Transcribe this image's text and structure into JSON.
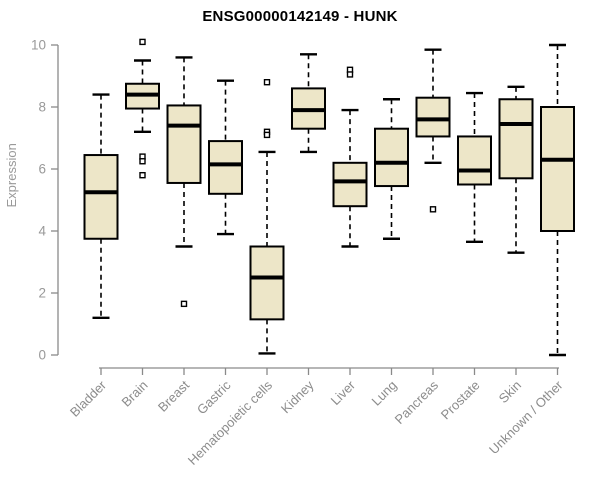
{
  "title": "ENSG00000142149 - HUNK",
  "chart_data": {
    "type": "boxplot",
    "title": "ENSG00000142149 - HUNK",
    "xlabel": "",
    "ylabel": "Expression",
    "ylim": [
      0,
      10
    ],
    "yticks": [
      0,
      2,
      4,
      6,
      8,
      10
    ],
    "grid": false,
    "legend": false,
    "marker": "open-square",
    "categories": [
      "Bladder",
      "Brain",
      "Breast",
      "Gastric",
      "Hematopoietic cells",
      "Kidney",
      "Liver",
      "Lung",
      "Pancreas",
      "Prostate",
      "Skin",
      "Unknown / Other"
    ],
    "series": [
      {
        "name": "Bladder",
        "low": 1.2,
        "q1": 3.75,
        "median": 5.25,
        "q3": 6.45,
        "high": 8.4,
        "outliers": []
      },
      {
        "name": "Brain",
        "low": 7.2,
        "q1": 7.95,
        "median": 8.4,
        "q3": 8.75,
        "high": 9.5,
        "outliers": [
          10.1,
          6.4,
          6.25,
          5.8
        ]
      },
      {
        "name": "Breast",
        "low": 3.5,
        "q1": 5.55,
        "median": 7.4,
        "q3": 8.05,
        "high": 9.6,
        "outliers": [
          1.65
        ]
      },
      {
        "name": "Gastric",
        "low": 3.9,
        "q1": 5.2,
        "median": 6.15,
        "q3": 6.9,
        "high": 8.85,
        "outliers": []
      },
      {
        "name": "Hematopoietic cells",
        "low": 0.05,
        "q1": 1.15,
        "median": 2.5,
        "q3": 3.5,
        "high": 6.55,
        "outliers": [
          8.8,
          7.2,
          7.1
        ]
      },
      {
        "name": "Kidney",
        "low": 6.55,
        "q1": 7.3,
        "median": 7.9,
        "q3": 8.6,
        "high": 9.7,
        "outliers": []
      },
      {
        "name": "Liver",
        "low": 3.5,
        "q1": 4.8,
        "median": 5.6,
        "q3": 6.2,
        "high": 7.9,
        "outliers": [
          9.2,
          9.05
        ]
      },
      {
        "name": "Lung",
        "low": 3.75,
        "q1": 5.45,
        "median": 6.2,
        "q3": 7.3,
        "high": 8.25,
        "outliers": []
      },
      {
        "name": "Pancreas",
        "low": 6.2,
        "q1": 7.05,
        "median": 7.6,
        "q3": 8.3,
        "high": 9.85,
        "outliers": [
          4.7
        ]
      },
      {
        "name": "Prostate",
        "low": 3.65,
        "q1": 5.5,
        "median": 5.95,
        "q3": 7.05,
        "high": 8.45,
        "outliers": []
      },
      {
        "name": "Skin",
        "low": 3.3,
        "q1": 5.7,
        "median": 7.45,
        "q3": 8.25,
        "high": 8.65,
        "outliers": []
      },
      {
        "name": "Unknown / Other",
        "low": 0.0,
        "q1": 4.0,
        "median": 6.3,
        "q3": 8.0,
        "high": 10.0,
        "outliers": []
      }
    ],
    "colors": {
      "box_fill": "#EDE6C8",
      "box_border": "#000000",
      "median": "#000000",
      "whisker": "#000000",
      "outlier_stroke": "#000000",
      "outlier_fill": "#FFFFFF",
      "axis": "#8A8A8A",
      "tick_label": "#999999",
      "category_label": "#8C8C8C",
      "title": "#000000",
      "background": "#FFFFFF"
    }
  }
}
